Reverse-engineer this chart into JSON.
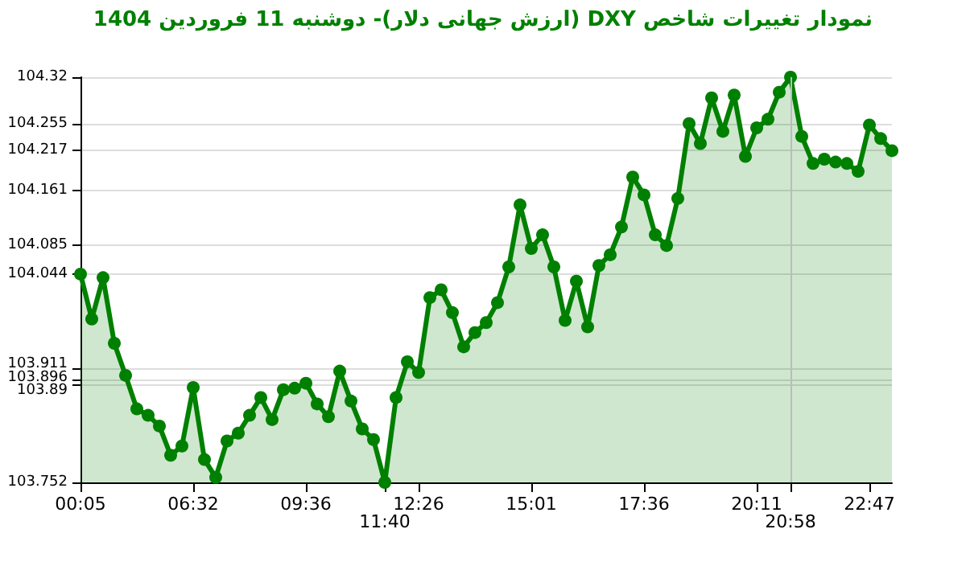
{
  "chart_data": {
    "type": "area",
    "title": "نمودار تغییرات شاخص DXY (ارزش جهانی دلار)-  دوشنبه  11 فروردین 1404",
    "categories": [
      "00:05",
      null,
      null,
      null,
      null,
      null,
      null,
      null,
      null,
      null,
      "06:32",
      null,
      null,
      null,
      null,
      null,
      null,
      null,
      null,
      null,
      "09:36",
      null,
      null,
      null,
      null,
      null,
      null,
      "11:40",
      null,
      null,
      "12:26",
      null,
      null,
      null,
      null,
      null,
      null,
      null,
      null,
      null,
      "15:01",
      null,
      null,
      null,
      null,
      null,
      null,
      null,
      null,
      null,
      "17:36",
      null,
      null,
      null,
      null,
      null,
      null,
      null,
      null,
      null,
      "20:11",
      null,
      null,
      "20:58",
      null,
      null,
      null,
      null,
      null,
      null,
      "22:47",
      null,
      null
    ],
    "series": [
      {
        "color": "#008000",
        "values": [
          104.044,
          103.981,
          104.039,
          103.947,
          103.902,
          103.855,
          103.846,
          103.831,
          103.79,
          103.803,
          103.885,
          103.784,
          103.759,
          103.81,
          103.821,
          103.846,
          103.871,
          103.84,
          103.882,
          103.884,
          103.891,
          103.862,
          103.844,
          103.908,
          103.866,
          103.827,
          103.812,
          103.752,
          103.871,
          103.921,
          103.906,
          104.011,
          104.022,
          103.99,
          103.942,
          103.962,
          103.976,
          104.004,
          104.054,
          104.141,
          104.08,
          104.099,
          104.054,
          103.979,
          104.034,
          103.97,
          104.056,
          104.071,
          104.11,
          104.18,
          104.155,
          104.099,
          104.084,
          104.15,
          104.255,
          104.227,
          104.291,
          104.244,
          104.295,
          104.209,
          104.249,
          104.261,
          104.299,
          104.32,
          104.237,
          104.199,
          104.205,
          104.201,
          104.199,
          104.188,
          104.253,
          104.234,
          104.217
        ]
      }
    ],
    "ylim": [
      103.752,
      104.32
    ],
    "yticks": [
      103.752,
      103.89,
      103.896,
      103.911,
      104.044,
      104.085,
      104.161,
      104.217,
      104.255,
      104.32
    ],
    "ref_lines": [
      {
        "axis": "x",
        "value": "20:58",
        "color": "#bbbbbb"
      }
    ],
    "grid": "y",
    "marker": "circle",
    "line_style": "solid"
  }
}
